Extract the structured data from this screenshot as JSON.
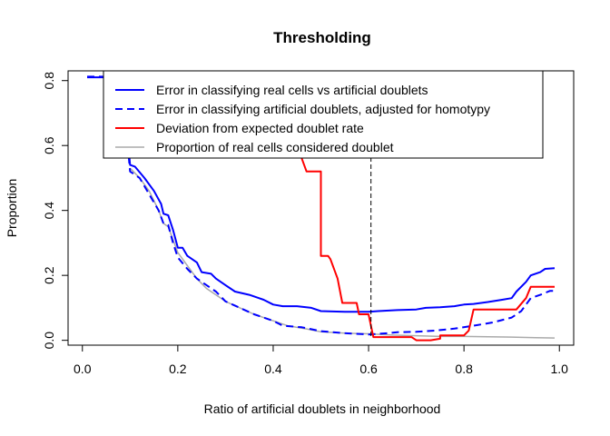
{
  "chart_data": {
    "type": "line",
    "title": "Thresholding",
    "xlabel": "Ratio of artificial doublets in neighborhood",
    "ylabel": "Proportion",
    "xlim": [
      -0.03,
      1.03
    ],
    "ylim": [
      -0.015,
      0.83
    ],
    "x_ticks": [
      0,
      0.2,
      0.4,
      0.6,
      0.8,
      1
    ],
    "x_tick_labels": [
      "0.0",
      "0.2",
      "0.4",
      "0.6",
      "0.8",
      "1.0"
    ],
    "y_ticks": [
      0,
      0.2,
      0.4,
      0.6,
      0.8
    ],
    "y_tick_labels": [
      "0.0",
      "0.2",
      "0.4",
      "0.6",
      "0.8"
    ],
    "threshold_x": 0.605,
    "legend_position": "top",
    "series": [
      {
        "name": "Error in classifying real cells vs artificial doublets",
        "color": "#0000ff",
        "dash": "solid",
        "width": 2,
        "points": [
          [
            0.01,
            0.81
          ],
          [
            0.05,
            0.81
          ],
          [
            0.09,
            0.81
          ],
          [
            0.095,
            0.62
          ],
          [
            0.1,
            0.54
          ],
          [
            0.11,
            0.535
          ],
          [
            0.13,
            0.5
          ],
          [
            0.15,
            0.46
          ],
          [
            0.165,
            0.42
          ],
          [
            0.17,
            0.39
          ],
          [
            0.18,
            0.385
          ],
          [
            0.19,
            0.34
          ],
          [
            0.2,
            0.285
          ],
          [
            0.21,
            0.285
          ],
          [
            0.22,
            0.26
          ],
          [
            0.24,
            0.24
          ],
          [
            0.25,
            0.21
          ],
          [
            0.27,
            0.205
          ],
          [
            0.28,
            0.19
          ],
          [
            0.3,
            0.17
          ],
          [
            0.32,
            0.15
          ],
          [
            0.35,
            0.14
          ],
          [
            0.37,
            0.13
          ],
          [
            0.38,
            0.125
          ],
          [
            0.4,
            0.11
          ],
          [
            0.42,
            0.105
          ],
          [
            0.45,
            0.105
          ],
          [
            0.48,
            0.1
          ],
          [
            0.5,
            0.09
          ],
          [
            0.55,
            0.088
          ],
          [
            0.6,
            0.088
          ],
          [
            0.62,
            0.09
          ],
          [
            0.66,
            0.093
          ],
          [
            0.7,
            0.095
          ],
          [
            0.72,
            0.1
          ],
          [
            0.75,
            0.102
          ],
          [
            0.78,
            0.105
          ],
          [
            0.8,
            0.11
          ],
          [
            0.82,
            0.112
          ],
          [
            0.85,
            0.118
          ],
          [
            0.88,
            0.125
          ],
          [
            0.9,
            0.13
          ],
          [
            0.91,
            0.15
          ],
          [
            0.93,
            0.18
          ],
          [
            0.94,
            0.2
          ],
          [
            0.96,
            0.21
          ],
          [
            0.97,
            0.22
          ],
          [
            0.99,
            0.222
          ]
        ]
      },
      {
        "name": "Error in classifying artificial doublets, adjusted for homotypy",
        "color": "#0000ff",
        "dash": "dashed",
        "width": 2,
        "points": [
          [
            0.01,
            0.812
          ],
          [
            0.05,
            0.812
          ],
          [
            0.09,
            0.812
          ],
          [
            0.095,
            0.6
          ],
          [
            0.1,
            0.52
          ],
          [
            0.12,
            0.5
          ],
          [
            0.14,
            0.45
          ],
          [
            0.16,
            0.4
          ],
          [
            0.17,
            0.36
          ],
          [
            0.18,
            0.355
          ],
          [
            0.19,
            0.3
          ],
          [
            0.2,
            0.255
          ],
          [
            0.22,
            0.22
          ],
          [
            0.24,
            0.19
          ],
          [
            0.25,
            0.18
          ],
          [
            0.28,
            0.15
          ],
          [
            0.3,
            0.12
          ],
          [
            0.33,
            0.1
          ],
          [
            0.36,
            0.08
          ],
          [
            0.4,
            0.06
          ],
          [
            0.42,
            0.045
          ],
          [
            0.46,
            0.04
          ],
          [
            0.5,
            0.028
          ],
          [
            0.55,
            0.022
          ],
          [
            0.6,
            0.018
          ],
          [
            0.64,
            0.022
          ],
          [
            0.66,
            0.025
          ],
          [
            0.7,
            0.026
          ],
          [
            0.74,
            0.03
          ],
          [
            0.78,
            0.036
          ],
          [
            0.82,
            0.045
          ],
          [
            0.86,
            0.055
          ],
          [
            0.9,
            0.07
          ],
          [
            0.92,
            0.09
          ],
          [
            0.94,
            0.13
          ],
          [
            0.96,
            0.14
          ],
          [
            0.98,
            0.152
          ],
          [
            0.99,
            0.152
          ]
        ]
      },
      {
        "name": "Deviation from expected doublet rate",
        "color": "#ff0000",
        "dash": "solid",
        "width": 2,
        "points": [
          [
            0.45,
            0.6
          ],
          [
            0.47,
            0.52
          ],
          [
            0.5,
            0.52
          ],
          [
            0.5,
            0.26
          ],
          [
            0.515,
            0.26
          ],
          [
            0.52,
            0.25
          ],
          [
            0.535,
            0.19
          ],
          [
            0.545,
            0.115
          ],
          [
            0.575,
            0.115
          ],
          [
            0.58,
            0.08
          ],
          [
            0.6,
            0.08
          ],
          [
            0.61,
            0.01
          ],
          [
            0.69,
            0.01
          ],
          [
            0.7,
            0.0
          ],
          [
            0.73,
            0.0
          ],
          [
            0.75,
            0.005
          ],
          [
            0.75,
            0.015
          ],
          [
            0.8,
            0.015
          ],
          [
            0.81,
            0.03
          ],
          [
            0.82,
            0.095
          ],
          [
            0.91,
            0.095
          ],
          [
            0.93,
            0.13
          ],
          [
            0.94,
            0.165
          ],
          [
            0.99,
            0.165
          ]
        ]
      },
      {
        "name": "Proportion of real cells considered doublet",
        "color": "#aaaaaa",
        "dash": "solid",
        "width": 1.5,
        "points": [
          [
            0.1,
            0.53
          ],
          [
            0.12,
            0.5
          ],
          [
            0.14,
            0.46
          ],
          [
            0.16,
            0.4
          ],
          [
            0.17,
            0.36
          ],
          [
            0.18,
            0.35
          ],
          [
            0.19,
            0.31
          ],
          [
            0.2,
            0.27
          ],
          [
            0.22,
            0.23
          ],
          [
            0.24,
            0.19
          ],
          [
            0.26,
            0.16
          ],
          [
            0.28,
            0.14
          ],
          [
            0.3,
            0.12
          ],
          [
            0.33,
            0.1
          ],
          [
            0.36,
            0.08
          ],
          [
            0.4,
            0.06
          ],
          [
            0.43,
            0.045
          ],
          [
            0.47,
            0.035
          ],
          [
            0.5,
            0.026
          ],
          [
            0.55,
            0.022
          ],
          [
            0.6,
            0.02
          ],
          [
            0.65,
            0.016
          ],
          [
            0.7,
            0.014
          ],
          [
            0.75,
            0.012
          ],
          [
            0.8,
            0.012
          ],
          [
            0.85,
            0.011
          ],
          [
            0.9,
            0.01
          ],
          [
            0.95,
            0.008
          ],
          [
            0.99,
            0.007
          ]
        ]
      }
    ]
  }
}
